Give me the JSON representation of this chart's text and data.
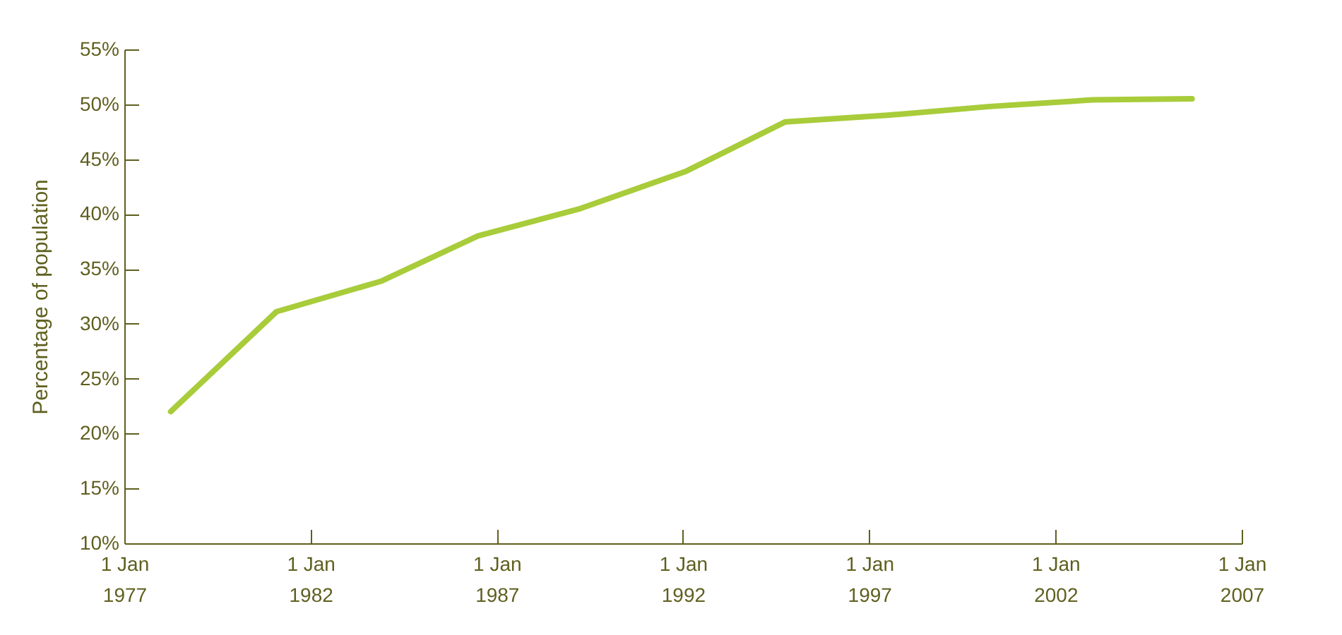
{
  "chart_data": {
    "type": "line",
    "ylabel": "Percentage of population",
    "x": [
      "1978-04",
      "1981-02",
      "1983-12",
      "1986-07",
      "1989-04",
      "1992-02",
      "1994-10",
      "1997-07",
      "2000-04",
      "2003-01",
      "2005-09"
    ],
    "series": [
      {
        "color": "#a8cc3a",
        "values": [
          22.0,
          31.1,
          33.9,
          38.0,
          40.5,
          43.9,
          48.4,
          49.0,
          49.8,
          50.4,
          50.5
        ]
      }
    ],
    "xlim": [
      "1977-01-01",
      "2007-01-01"
    ],
    "xticks": [
      {
        "value": "1977-01-01",
        "label": "1 Jan 1977"
      },
      {
        "value": "1982-01-01",
        "label": "1 Jan 1982"
      },
      {
        "value": "1987-01-01",
        "label": "1 Jan 1987"
      },
      {
        "value": "1992-01-01",
        "label": "1 Jan 1992"
      },
      {
        "value": "1997-01-01",
        "label": "1 Jan 1997"
      },
      {
        "value": "2002-01-01",
        "label": "1 Jan 2002"
      },
      {
        "value": "2007-01-01",
        "label": "1 Jan 2007"
      }
    ],
    "ylim": [
      10,
      55
    ],
    "yticks": [
      {
        "value": 10,
        "label": "10%"
      },
      {
        "value": 15,
        "label": "15%"
      },
      {
        "value": 20,
        "label": "20%"
      },
      {
        "value": 25,
        "label": "25%"
      },
      {
        "value": 30,
        "label": "30%"
      },
      {
        "value": 35,
        "label": "35%"
      },
      {
        "value": 40,
        "label": "40%"
      },
      {
        "value": 45,
        "label": "45%"
      },
      {
        "value": 50,
        "label": "50%"
      },
      {
        "value": 55,
        "label": "55%"
      }
    ],
    "grid": false,
    "legend": false,
    "line_style": "solid",
    "marker": "none"
  }
}
